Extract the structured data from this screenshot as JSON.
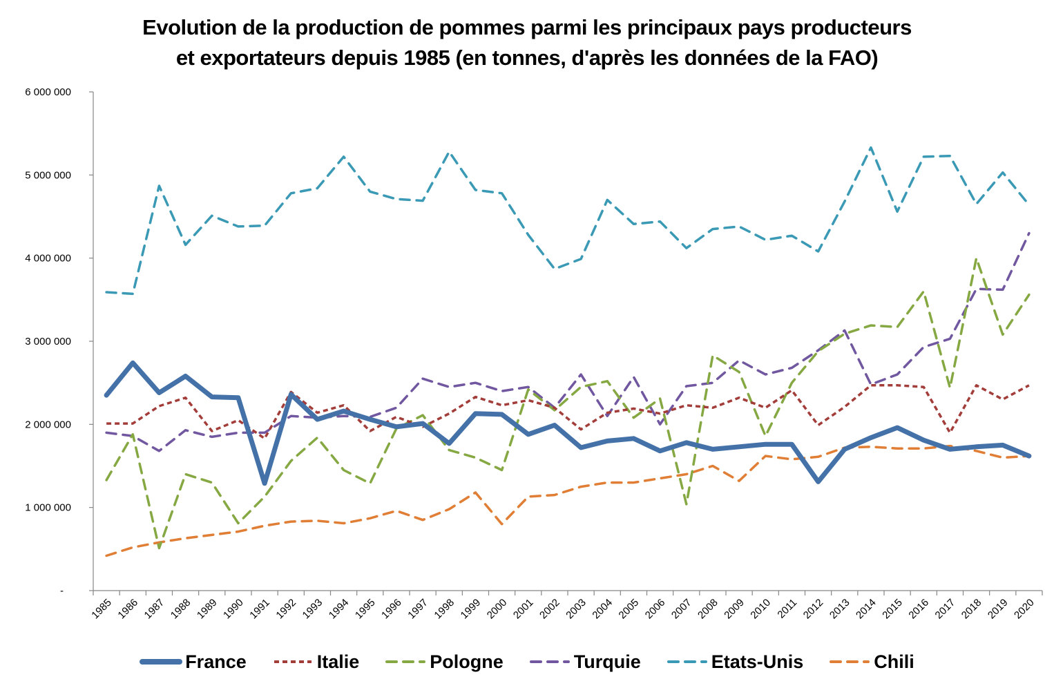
{
  "chart_data": {
    "type": "line",
    "title": "Evolution de la production de pommes parmi les principaux pays producteurs et exportateurs depuis 1985 (en tonnes, d'après les données de la FAO)",
    "title_lines": [
      "Evolution de la production de pommes parmi les principaux pays producteurs",
      "et exportateurs depuis 1985 (en tonnes, d'après les données de la FAO)"
    ],
    "xlabel": "",
    "ylabel": "",
    "ylim": [
      0,
      6000000
    ],
    "yticks": [
      0,
      1000000,
      2000000,
      3000000,
      4000000,
      5000000,
      6000000
    ],
    "ytick_labels": [
      "-",
      "1 000 000",
      "2 000 000",
      "3 000 000",
      "4 000 000",
      "5 000 000",
      "6 000 000"
    ],
    "grid": false,
    "legend_position": "bottom",
    "categories": [
      "1985",
      "1986",
      "1987",
      "1988",
      "1989",
      "1990",
      "1991",
      "1992",
      "1993",
      "1994",
      "1995",
      "1996",
      "1997",
      "1998",
      "1999",
      "2000",
      "2001",
      "2002",
      "2003",
      "2004",
      "2005",
      "2006",
      "2007",
      "2008",
      "2009",
      "2010",
      "2011",
      "2012",
      "2013",
      "2014",
      "2015",
      "2016",
      "2017",
      "2018",
      "2019",
      "2020"
    ],
    "series": [
      {
        "name": "France",
        "color": "#4472A8",
        "style": "solid-thick",
        "values": [
          2350000,
          2740000,
          2380000,
          2580000,
          2330000,
          2320000,
          1290000,
          2360000,
          2060000,
          2160000,
          2060000,
          1970000,
          2010000,
          1770000,
          2130000,
          2120000,
          1880000,
          1990000,
          1720000,
          1800000,
          1830000,
          1680000,
          1780000,
          1700000,
          1730000,
          1760000,
          1760000,
          1310000,
          1700000,
          1840000,
          1960000,
          1810000,
          1700000,
          1730000,
          1750000,
          1620000
        ]
      },
      {
        "name": "Italie",
        "color": "#A33D3A",
        "style": "dotted",
        "values": [
          2010000,
          2010000,
          2220000,
          2320000,
          1920000,
          2050000,
          1830000,
          2390000,
          2140000,
          2230000,
          1920000,
          2090000,
          1970000,
          2130000,
          2330000,
          2230000,
          2290000,
          2200000,
          1940000,
          2140000,
          2190000,
          2130000,
          2230000,
          2200000,
          2320000,
          2200000,
          2410000,
          1990000,
          2210000,
          2470000,
          2470000,
          2450000,
          1900000,
          2470000,
          2300000,
          2470000
        ]
      },
      {
        "name": "Pologne",
        "color": "#86A843",
        "style": "dashed",
        "values": [
          1330000,
          1880000,
          510000,
          1400000,
          1300000,
          810000,
          1130000,
          1560000,
          1840000,
          1450000,
          1290000,
          1950000,
          2110000,
          1690000,
          1600000,
          1450000,
          2420000,
          2170000,
          2450000,
          2520000,
          2080000,
          2310000,
          1040000,
          2830000,
          2630000,
          1860000,
          2500000,
          2880000,
          3090000,
          3190000,
          3170000,
          3600000,
          2440000,
          4000000,
          3080000,
          3560000
        ]
      },
      {
        "name": "Turquie",
        "color": "#7057A0",
        "style": "dashed",
        "values": [
          1900000,
          1860000,
          1680000,
          1930000,
          1850000,
          1900000,
          1900000,
          2100000,
          2080000,
          2100000,
          2090000,
          2200000,
          2550000,
          2450000,
          2500000,
          2400000,
          2450000,
          2200000,
          2600000,
          2100000,
          2570000,
          2000000,
          2460000,
          2500000,
          2770000,
          2600000,
          2680000,
          2890000,
          3130000,
          2480000,
          2600000,
          2930000,
          3030000,
          3630000,
          3620000,
          4300000
        ]
      },
      {
        "name": "Etats-Unis",
        "color": "#3A99B4",
        "style": "dashed",
        "values": [
          3590000,
          3570000,
          4870000,
          4160000,
          4510000,
          4380000,
          4390000,
          4780000,
          4840000,
          5220000,
          4800000,
          4710000,
          4690000,
          5280000,
          4820000,
          4780000,
          4280000,
          3870000,
          3990000,
          4700000,
          4410000,
          4440000,
          4120000,
          4350000,
          4380000,
          4220000,
          4270000,
          4080000,
          4680000,
          5330000,
          4560000,
          5220000,
          5230000,
          4650000,
          5030000,
          4640000
        ]
      },
      {
        "name": "Chili",
        "color": "#E07E35",
        "style": "dashed",
        "values": [
          420000,
          520000,
          580000,
          630000,
          670000,
          710000,
          780000,
          830000,
          840000,
          810000,
          870000,
          960000,
          850000,
          980000,
          1180000,
          800000,
          1130000,
          1150000,
          1250000,
          1300000,
          1300000,
          1350000,
          1400000,
          1500000,
          1320000,
          1620000,
          1580000,
          1610000,
          1720000,
          1730000,
          1710000,
          1710000,
          1740000,
          1680000,
          1600000,
          1620000
        ]
      }
    ]
  }
}
